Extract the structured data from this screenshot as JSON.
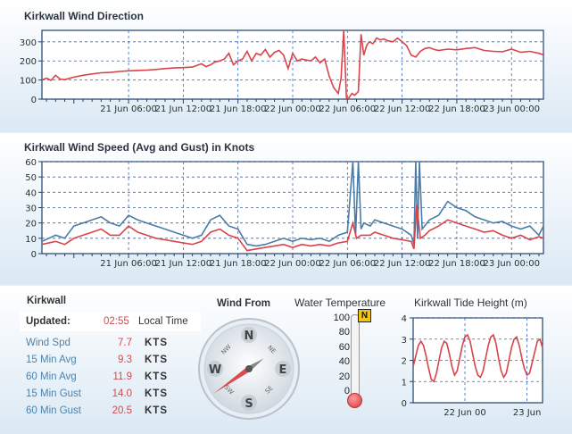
{
  "wind_direction": {
    "title": "Kirkwall Wind Direction",
    "chart_data": {
      "type": "line",
      "y_ticks": [
        0,
        100,
        200,
        300
      ],
      "ylim": [
        0,
        360
      ],
      "x_ticks": [
        "21 Jun 06:00",
        "21 Jun 12:00",
        "21 Jun 18:00",
        "22 Jun 00:00",
        "22 Jun 06:00",
        "22 Jun 12:00",
        "22 Jun 18:00",
        "23 Jun 00:00"
      ],
      "xlim_hours": [
        -3.5,
        51.5
      ],
      "series": [
        {
          "color": "#d9434a",
          "x": [
            -3.5,
            -3,
            -2.5,
            -2,
            -1.5,
            -1,
            0,
            1,
            2,
            3,
            4,
            5,
            6,
            7,
            8,
            9,
            10,
            11,
            12,
            13,
            14,
            14.5,
            15,
            15.5,
            16,
            16.5,
            17,
            17.5,
            18,
            18.5,
            19,
            19.5,
            20,
            20.5,
            21,
            21.5,
            22,
            22.5,
            23,
            23.5,
            24,
            24.5,
            25,
            25.5,
            26,
            26.5,
            27,
            27.5,
            28,
            28.5,
            29,
            29.3,
            29.6,
            29.9,
            30.2,
            30.5,
            30.8,
            31.2,
            31.5,
            31.8,
            32.1,
            32.4,
            32.8,
            33.2,
            33.6,
            34,
            34.5,
            35,
            35.5,
            36,
            36.5,
            37,
            37.5,
            38,
            38.5,
            39,
            39.5,
            40,
            41,
            42,
            43,
            44,
            45,
            46,
            47,
            48,
            49,
            50,
            51,
            51.5
          ],
          "y": [
            100,
            110,
            98,
            125,
            105,
            102,
            115,
            125,
            132,
            138,
            140,
            145,
            148,
            150,
            152,
            155,
            160,
            163,
            165,
            168,
            185,
            170,
            180,
            195,
            200,
            210,
            240,
            180,
            200,
            210,
            250,
            200,
            240,
            230,
            260,
            220,
            245,
            255,
            230,
            160,
            240,
            200,
            210,
            205,
            200,
            220,
            190,
            210,
            120,
            60,
            30,
            110,
            360,
            0,
            10,
            30,
            20,
            40,
            340,
            230,
            280,
            300,
            290,
            320,
            310,
            315,
            305,
            300,
            320,
            300,
            280,
            230,
            220,
            250,
            265,
            270,
            260,
            255,
            262,
            258,
            265,
            270,
            255,
            250,
            248,
            262,
            245,
            250,
            240,
            232
          ]
        }
      ]
    }
  },
  "wind_speed": {
    "title": "Kirkwall Wind Speed (Avg and Gust) in Knots",
    "chart_data": {
      "type": "line",
      "y_ticks": [
        0,
        10,
        20,
        30,
        40,
        50,
        60
      ],
      "ylim": [
        0,
        60
      ],
      "x_ticks": [
        "21 Jun 06:00",
        "21 Jun 12:00",
        "21 Jun 18:00",
        "22 Jun 00:00",
        "22 Jun 06:00",
        "22 Jun 12:00",
        "22 Jun 18:00",
        "23 Jun 00:00"
      ],
      "xlim_hours": [
        -3.5,
        51.5
      ],
      "series": [
        {
          "color": "#4a7ca6",
          "x": [
            -3.5,
            -2,
            -1,
            0,
            1,
            2,
            3,
            4,
            5,
            6,
            7,
            8,
            9,
            10,
            11,
            12,
            13,
            14,
            15,
            16,
            17,
            18,
            19,
            20,
            21,
            22,
            23,
            24,
            25,
            26,
            27,
            28,
            29,
            30,
            30.6,
            30.9,
            31.2,
            31.5,
            31.8,
            32.5,
            33,
            34,
            35,
            36,
            37,
            37.3,
            37.5,
            37.7,
            37.9,
            38.2,
            39,
            40,
            41,
            42,
            43,
            44,
            45,
            46,
            47,
            48,
            49,
            50,
            51,
            51.5
          ],
          "y": [
            8,
            12,
            10,
            18,
            20,
            22,
            24,
            20,
            18,
            25,
            22,
            20,
            18,
            16,
            14,
            12,
            10,
            12,
            22,
            25,
            18,
            16,
            6,
            5,
            6,
            8,
            10,
            8,
            10,
            9,
            10,
            8,
            12,
            14,
            60,
            12,
            60,
            16,
            20,
            18,
            22,
            20,
            18,
            16,
            12,
            6,
            60,
            10,
            60,
            16,
            22,
            25,
            34,
            30,
            28,
            24,
            22,
            20,
            21,
            18,
            16,
            18,
            12,
            18
          ]
        },
        {
          "color": "#d9434a",
          "x": [
            -3.5,
            -2,
            -1,
            0,
            1,
            2,
            3,
            4,
            5,
            6,
            7,
            8,
            9,
            10,
            11,
            12,
            13,
            14,
            15,
            16,
            17,
            18,
            19,
            20,
            21,
            22,
            23,
            24,
            25,
            26,
            27,
            28,
            29,
            30,
            30.6,
            31,
            31.5,
            32.5,
            33,
            34,
            35,
            36,
            37,
            37.3,
            37.6,
            38,
            38.5,
            39,
            40,
            41,
            42,
            43,
            44,
            45,
            46,
            47,
            48,
            49,
            50,
            51,
            51.5
          ],
          "y": [
            6,
            8,
            6,
            10,
            12,
            14,
            16,
            12,
            12,
            18,
            14,
            12,
            10,
            9,
            8,
            7,
            6,
            8,
            14,
            16,
            12,
            10,
            2,
            3,
            4,
            5,
            6,
            4,
            6,
            5,
            6,
            5,
            7,
            8,
            20,
            10,
            12,
            12,
            14,
            12,
            10,
            9,
            8,
            3,
            32,
            10,
            12,
            15,
            18,
            22,
            20,
            18,
            16,
            14,
            15,
            12,
            10,
            12,
            9,
            11,
            10
          ]
        }
      ]
    }
  },
  "current": {
    "station": "Kirkwall",
    "updated_label": "Updated:",
    "updated_time": "02:55",
    "time_unit": "Local Time",
    "rows": [
      {
        "label": "Wind Spd",
        "value": "7.7",
        "unit": "KTS"
      },
      {
        "label": "15 Min Avg",
        "value": "9.3",
        "unit": "KTS"
      },
      {
        "label": "60 Min Avg",
        "value": "11.9",
        "unit": "KTS"
      },
      {
        "label": "15 Min Gust",
        "value": "14.0",
        "unit": "KTS"
      },
      {
        "label": "60 Min Gust",
        "value": "20.5",
        "unit": "KTS"
      }
    ]
  },
  "compass": {
    "title": "Wind From",
    "cardinals": {
      "n": "N",
      "e": "E",
      "s": "S",
      "w": "W"
    },
    "intercardinals": {
      "nw": "NW",
      "ne": "NE",
      "se": "SE",
      "sw": "SW"
    },
    "needle_deg": 235
  },
  "water_temp": {
    "title": "Water Temperature",
    "ticks": [
      "100",
      "80",
      "60",
      "40",
      "20",
      "0"
    ],
    "badge": "N",
    "level_fraction": 0.0
  },
  "tide": {
    "title": "Kirkwall Tide Height (m)",
    "chart_data": {
      "type": "line",
      "y_ticks": [
        0,
        1,
        2,
        3,
        4
      ],
      "ylim": [
        0,
        4
      ],
      "x_ticks": [
        "22 Jun 00",
        "23 Jun"
      ],
      "series": [
        {
          "color": "#d9434a",
          "x": [
            0,
            1,
            2,
            3,
            4,
            5,
            6,
            7,
            8,
            9,
            10,
            11,
            12,
            13,
            14,
            15,
            16,
            17,
            18,
            19,
            20,
            21,
            22,
            23,
            24,
            25,
            26,
            27,
            28,
            29,
            30,
            31,
            32,
            33,
            34,
            35,
            36,
            37,
            38,
            39,
            40,
            41,
            42,
            43,
            44,
            45,
            46,
            47,
            48,
            49,
            50
          ],
          "y": [
            1.7,
            2.2,
            2.7,
            2.9,
            2.7,
            2.2,
            1.6,
            1.1,
            1.0,
            1.4,
            2.0,
            2.6,
            2.9,
            2.8,
            2.3,
            1.7,
            1.3,
            1.5,
            2.1,
            2.7,
            3.1,
            3.2,
            2.9,
            2.3,
            1.7,
            1.3,
            1.2,
            1.5,
            2.1,
            2.7,
            3.1,
            3.2,
            2.8,
            2.1,
            1.5,
            1.2,
            1.4,
            2.0,
            2.6,
            3.0,
            3.1,
            2.7,
            2.1,
            1.6,
            1.3,
            1.4,
            1.9,
            2.4,
            2.9,
            3.0,
            2.6
          ]
        }
      ]
    }
  }
}
